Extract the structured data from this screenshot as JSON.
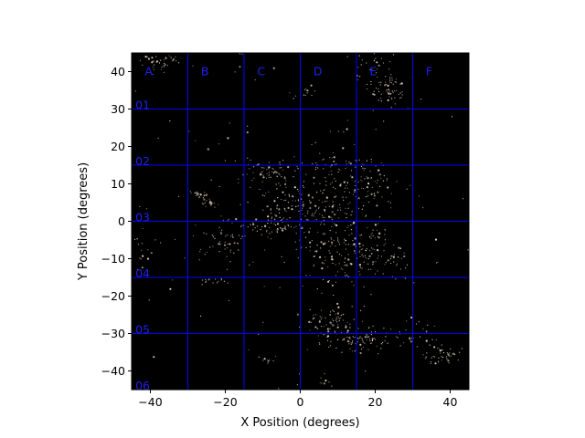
{
  "chart_data": {
    "type": "scatter",
    "title": "",
    "xlabel": "X Position (degrees)",
    "ylabel": "Y Position (degrees)",
    "xlim": [
      -45,
      45
    ],
    "ylim": [
      -45,
      45
    ],
    "x_ticks": [
      -40,
      -20,
      0,
      20,
      40
    ],
    "y_ticks": [
      -40,
      -30,
      -20,
      -10,
      0,
      10,
      20,
      30,
      40
    ],
    "background": "#000000",
    "point_color": "#e8d8c0",
    "grid_color": "#0000ff",
    "grid_label_color": "#2020ee",
    "grid_lines_x": [
      -30,
      -15,
      0,
      15,
      30
    ],
    "grid_lines_y": [
      30,
      15,
      0,
      -15,
      -30
    ],
    "column_labels": [
      {
        "label": "A",
        "x": -41.5,
        "y": 40
      },
      {
        "label": "B",
        "x": -26.5,
        "y": 40
      },
      {
        "label": "C",
        "x": -11.5,
        "y": 40
      },
      {
        "label": "D",
        "x": 3.5,
        "y": 40
      },
      {
        "label": "E",
        "x": 18.5,
        "y": 40
      },
      {
        "label": "F",
        "x": 33.5,
        "y": 40
      }
    ],
    "row_labels": [
      {
        "label": "01",
        "x": -44,
        "y": 31
      },
      {
        "label": "02",
        "x": -44,
        "y": 16
      },
      {
        "label": "03",
        "x": -44,
        "y": 1
      },
      {
        "label": "04",
        "x": -44,
        "y": -14
      },
      {
        "label": "05",
        "x": -44,
        "y": -29
      },
      {
        "label": "06",
        "x": -44,
        "y": -44
      }
    ],
    "clusters": [
      {
        "cx": -37,
        "cy": 43,
        "sx": 3,
        "sy": 2,
        "n": 45
      },
      {
        "cx": 23,
        "cy": 35,
        "sx": 3,
        "sy": 2.5,
        "n": 70
      },
      {
        "cx": 20,
        "cy": 42,
        "sx": 3,
        "sy": 2,
        "n": 25
      },
      {
        "cx": 1,
        "cy": 34,
        "sx": 1.2,
        "sy": 0.8,
        "n": 12
      },
      {
        "cx": -27,
        "cy": 7,
        "sx": 1.2,
        "sy": 0.6,
        "n": 20
      },
      {
        "cx": -24,
        "cy": 5,
        "sx": 1.2,
        "sy": 0.6,
        "n": 20
      },
      {
        "cx": -21,
        "cy": -4,
        "sx": 3,
        "sy": 3,
        "n": 50
      },
      {
        "cx": -9,
        "cy": 13,
        "sx": 3,
        "sy": 1.5,
        "n": 55
      },
      {
        "cx": 7,
        "cy": 3,
        "sx": 7,
        "sy": 6,
        "n": 220
      },
      {
        "cx": 8,
        "cy": 15,
        "sx": 4,
        "sy": 2,
        "n": 40
      },
      {
        "cx": 19,
        "cy": 11,
        "sx": 4,
        "sy": 3,
        "n": 50
      },
      {
        "cx": -8,
        "cy": -1,
        "sx": 3,
        "sy": 2,
        "n": 45
      },
      {
        "cx": 20,
        "cy": -9,
        "sx": 5,
        "sy": 4,
        "n": 100
      },
      {
        "cx": 8,
        "cy": -9,
        "sx": 4,
        "sy": 4,
        "n": 60
      },
      {
        "cx": -3,
        "cy": 4,
        "sx": 3,
        "sy": 3,
        "n": 40
      },
      {
        "cx": 8,
        "cy": -27,
        "sx": 3.5,
        "sy": 3,
        "n": 90
      },
      {
        "cx": 17,
        "cy": -32,
        "sx": 4,
        "sy": 1.5,
        "n": 70
      },
      {
        "cx": 38,
        "cy": -36,
        "sx": 3,
        "sy": 1.5,
        "n": 45
      },
      {
        "cx": 7,
        "cy": -43,
        "sx": 1,
        "sy": 1.5,
        "n": 10
      },
      {
        "cx": -23,
        "cy": -16,
        "sx": 2,
        "sy": 0.4,
        "n": 15
      },
      {
        "cx": -9,
        "cy": -37,
        "sx": 1.5,
        "sy": 0.5,
        "n": 10
      },
      {
        "cx": -42,
        "cy": -7,
        "sx": 2,
        "sy": 3,
        "n": 20
      },
      {
        "cx": 30,
        "cy": -30,
        "sx": 3,
        "sy": 2,
        "n": 25
      },
      {
        "cx": 0,
        "cy": 0,
        "sx": 28,
        "sy": 28,
        "n": 160
      }
    ],
    "seed": 12345
  }
}
